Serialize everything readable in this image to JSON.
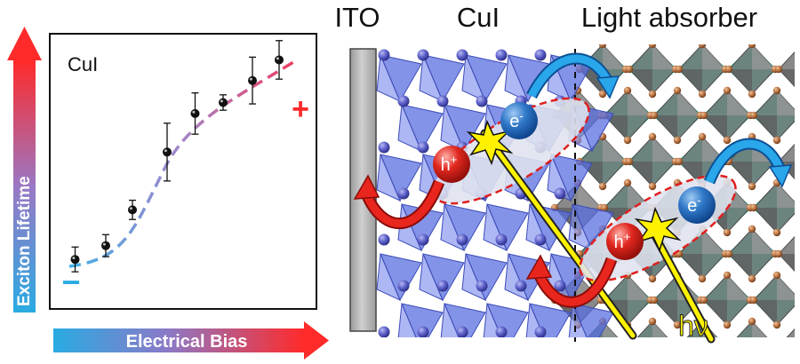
{
  "figure": {
    "colors": {
      "bias_low": "#29abe2",
      "bias_high": "#ff2a2a",
      "curve_low": "#4fb5e6",
      "curve_high": "#e8558a",
      "cui_polyhedra": "#5a6fe0",
      "absorber_octahedra": "#707070",
      "absorber_cation": "#1dd3b0",
      "electron": "#1c5fb3",
      "hole": "#d61f1f",
      "photon": "#ffee00",
      "arrow_blue": "#1e9be0",
      "arrow_red": "#e3201b"
    }
  },
  "left_panel": {
    "y_axis_label": "Exciton Lifetime",
    "x_axis_label": "Electrical Bias",
    "material_label": "CuI",
    "minus_sign": "−",
    "plus_sign": "+"
  },
  "chart_data": {
    "type": "scatter",
    "title": "CuI",
    "xlabel": "Electrical Bias",
    "ylabel": "Exciton Lifetime",
    "xlim": [
      0,
      10
    ],
    "ylim": [
      0,
      10
    ],
    "x": [
      0.95,
      2.1,
      3.1,
      4.4,
      5.45,
      6.5,
      7.6,
      8.6
    ],
    "y": [
      1.8,
      2.3,
      3.6,
      5.7,
      7.1,
      7.5,
      8.3,
      9.05
    ],
    "y_err": [
      0.45,
      0.4,
      0.35,
      1.05,
      0.75,
      0.28,
      0.85,
      0.7
    ],
    "trend": "sigmoidal dashed fit, color gradient from blue (low bias) to red (high bias)",
    "grid": false
  },
  "right_panel": {
    "ito_label": "ITO",
    "cui_label": "CuI",
    "absorber_label": "Light absorber",
    "electron_symbol": "e",
    "electron_sup": "-",
    "hole_symbol": "h",
    "hole_sup": "+",
    "photon_label": "hν"
  }
}
